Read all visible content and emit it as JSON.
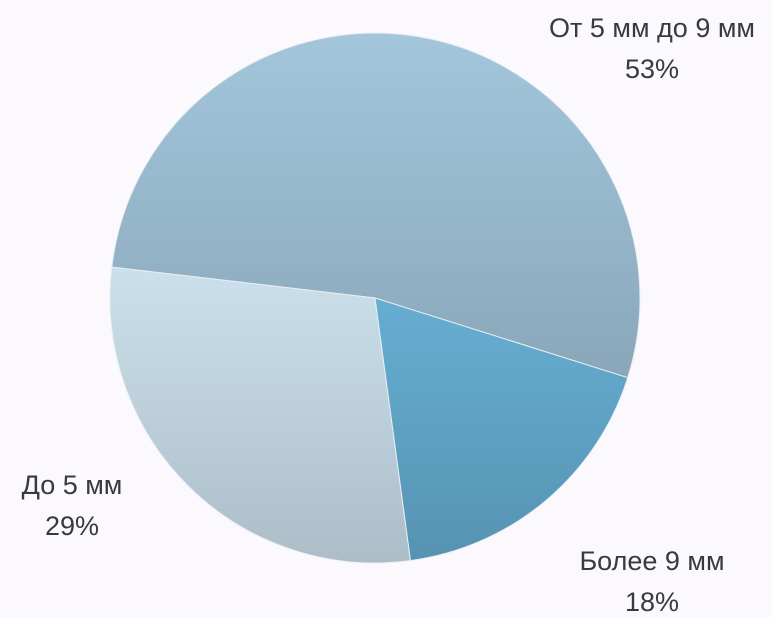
{
  "chart_data": {
    "type": "pie",
    "categories": [
      "От 5 мм до 9 мм",
      "До 5 мм",
      "Более 9 мм"
    ],
    "values": [
      53,
      29,
      18
    ],
    "value_labels": [
      "53%",
      "29%",
      "18%"
    ],
    "colors": [
      "#9dbed3",
      "#c3d7e3",
      "#62a7ca"
    ]
  }
}
